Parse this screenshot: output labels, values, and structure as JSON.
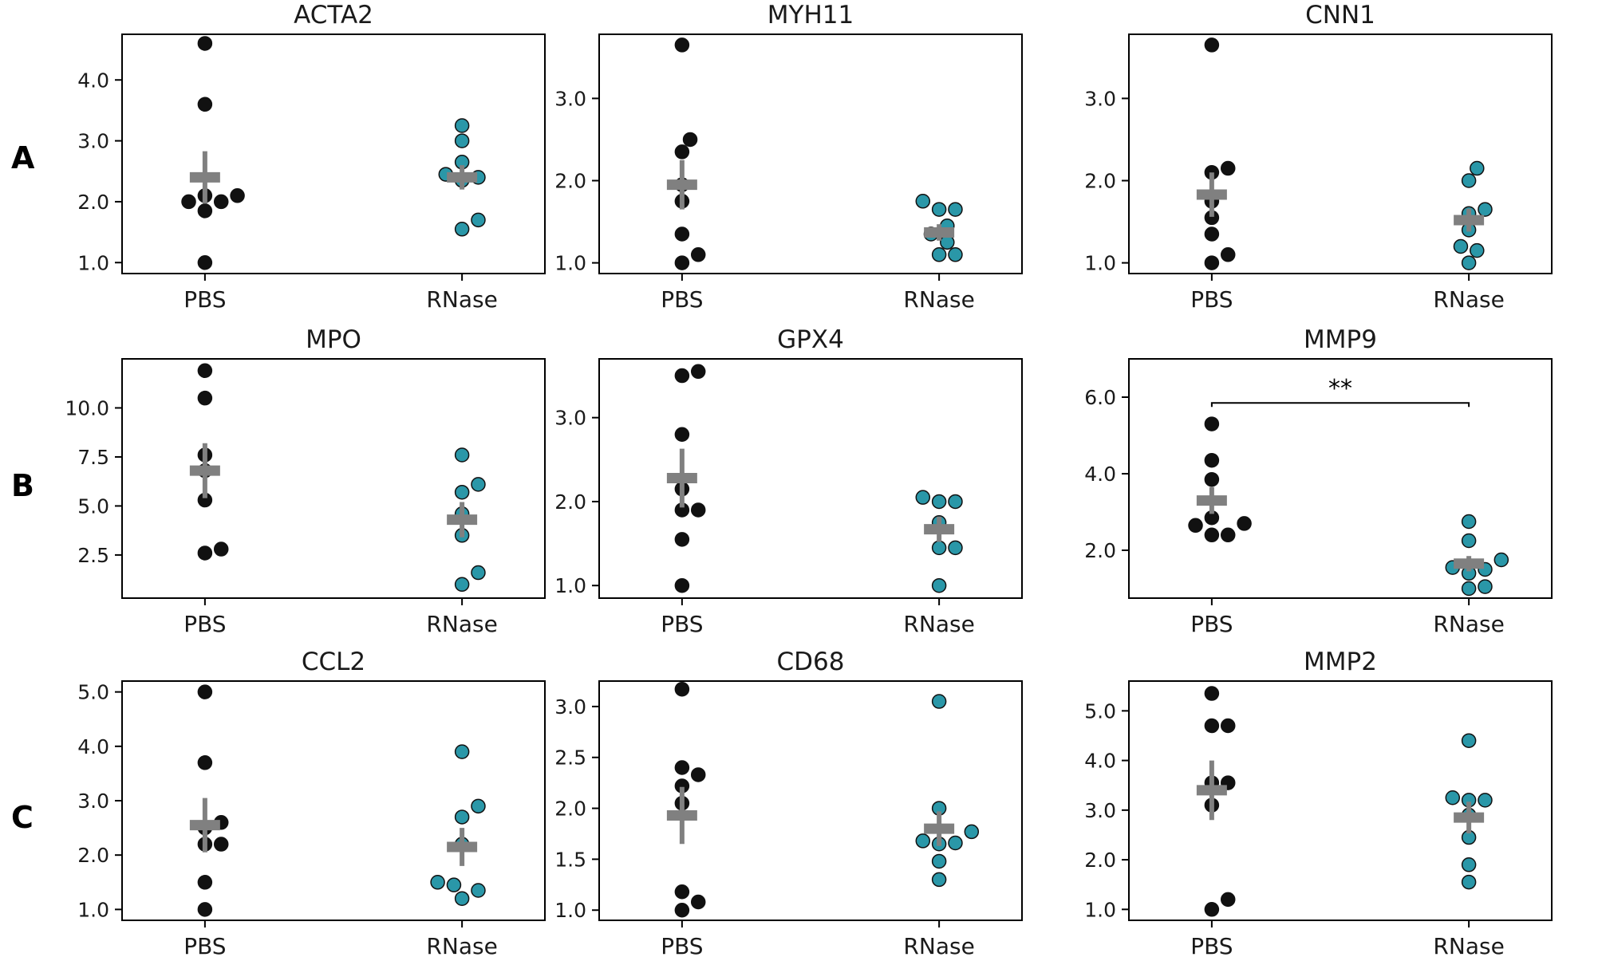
{
  "figure": {
    "row_labels": [
      "A",
      "B",
      "C"
    ],
    "colors": {
      "PBS": "#111111",
      "RNase": "#2a97a8",
      "summary": "#808080",
      "axis": "#000000",
      "text": "#1a1a1a"
    }
  },
  "chart_data": [
    {
      "type": "scatter",
      "title": "ACTA2",
      "row": "A",
      "categories": [
        "PBS",
        "RNase"
      ],
      "ylim": [
        0.82,
        4.75
      ],
      "yticks": [
        1.0,
        2.0,
        3.0,
        4.0
      ],
      "tick_format": "fixed1",
      "series": [
        {
          "name": "PBS",
          "values": [
            4.6,
            3.6,
            2.1,
            2.1,
            2.0,
            2.0,
            1.85,
            1.0
          ],
          "mean": 2.4,
          "sem": 0.43
        },
        {
          "name": "RNase",
          "values": [
            3.25,
            3.0,
            2.65,
            2.45,
            2.4,
            2.35,
            1.7,
            1.55
          ],
          "mean": 2.4,
          "sem": 0.2
        }
      ],
      "significance": null
    },
    {
      "type": "scatter",
      "title": "MYH11",
      "row": "A",
      "categories": [
        "PBS",
        "RNase"
      ],
      "ylim": [
        0.87,
        3.78
      ],
      "yticks": [
        1.0,
        2.0,
        3.0
      ],
      "tick_format": "fixed1",
      "series": [
        {
          "name": "PBS",
          "values": [
            3.65,
            2.5,
            2.35,
            1.95,
            1.75,
            1.35,
            1.1,
            1.0
          ],
          "mean": 1.95,
          "sem": 0.3
        },
        {
          "name": "RNase",
          "values": [
            1.75,
            1.65,
            1.65,
            1.45,
            1.35,
            1.25,
            1.1,
            1.1
          ],
          "mean": 1.37,
          "sem": 0.1
        }
      ],
      "significance": null
    },
    {
      "type": "scatter",
      "title": "CNN1",
      "row": "A",
      "categories": [
        "PBS",
        "RNase"
      ],
      "ylim": [
        0.87,
        3.78
      ],
      "yticks": [
        1.0,
        2.0,
        3.0
      ],
      "tick_format": "fixed1",
      "series": [
        {
          "name": "PBS",
          "values": [
            3.65,
            2.15,
            2.1,
            1.75,
            1.55,
            1.35,
            1.1,
            1.0
          ],
          "mean": 1.83,
          "sem": 0.27
        },
        {
          "name": "RNase",
          "values": [
            2.15,
            2.0,
            1.65,
            1.6,
            1.4,
            1.2,
            1.15,
            1.0
          ],
          "mean": 1.52,
          "sem": 0.14
        }
      ],
      "significance": null
    },
    {
      "type": "scatter",
      "title": "MPO",
      "row": "B",
      "categories": [
        "PBS",
        "RNase"
      ],
      "ylim": [
        0.3,
        12.5
      ],
      "yticks": [
        2.5,
        5.0,
        7.5,
        10.0
      ],
      "tick_format": "fixed1",
      "series": [
        {
          "name": "PBS",
          "values": [
            11.9,
            10.5,
            7.6,
            6.8,
            5.3,
            2.8,
            2.6
          ],
          "mean": 6.8,
          "sem": 1.4
        },
        {
          "name": "RNase",
          "values": [
            7.6,
            6.1,
            5.7,
            4.6,
            3.5,
            1.6,
            1.0
          ],
          "mean": 4.3,
          "sem": 0.9
        }
      ],
      "significance": null
    },
    {
      "type": "scatter",
      "title": "GPX4",
      "row": "B",
      "categories": [
        "PBS",
        "RNase"
      ],
      "ylim": [
        0.85,
        3.7
      ],
      "yticks": [
        1.0,
        2.0,
        3.0
      ],
      "tick_format": "fixed1",
      "series": [
        {
          "name": "PBS",
          "values": [
            3.55,
            3.5,
            2.8,
            2.15,
            1.9,
            1.9,
            1.55,
            1.0
          ],
          "mean": 2.28,
          "sem": 0.35
        },
        {
          "name": "RNase",
          "values": [
            2.05,
            2.0,
            2.0,
            1.75,
            1.45,
            1.45,
            1.0
          ],
          "mean": 1.67,
          "sem": 0.15
        }
      ],
      "significance": null
    },
    {
      "type": "scatter",
      "title": "MMP9",
      "row": "B",
      "categories": [
        "PBS",
        "RNase"
      ],
      "ylim": [
        0.75,
        7.0
      ],
      "yticks": [
        2.0,
        4.0,
        6.0
      ],
      "tick_format": "fixed1",
      "series": [
        {
          "name": "PBS",
          "values": [
            5.3,
            4.35,
            3.85,
            2.85,
            2.7,
            2.65,
            2.4,
            2.4
          ],
          "mean": 3.3,
          "sem": 0.35
        },
        {
          "name": "RNase",
          "values": [
            2.75,
            2.25,
            1.75,
            1.55,
            1.5,
            1.4,
            1.05,
            1.0
          ],
          "mean": 1.65,
          "sem": 0.2
        }
      ],
      "significance": {
        "label": "**",
        "y": 5.85
      }
    },
    {
      "type": "scatter",
      "title": "CCL2",
      "row": "C",
      "categories": [
        "PBS",
        "RNase"
      ],
      "ylim": [
        0.8,
        5.2
      ],
      "yticks": [
        1.0,
        2.0,
        3.0,
        4.0,
        5.0
      ],
      "tick_format": "fixed1",
      "series": [
        {
          "name": "PBS",
          "values": [
            5.0,
            3.7,
            2.6,
            2.5,
            2.2,
            2.2,
            1.5,
            1.0
          ],
          "mean": 2.55,
          "sem": 0.5
        },
        {
          "name": "RNase",
          "values": [
            3.9,
            2.9,
            2.7,
            2.2,
            1.5,
            1.45,
            1.35,
            1.2
          ],
          "mean": 2.15,
          "sem": 0.35
        }
      ],
      "significance": null
    },
    {
      "type": "scatter",
      "title": "CD68",
      "row": "C",
      "categories": [
        "PBS",
        "RNase"
      ],
      "ylim": [
        0.9,
        3.25
      ],
      "yticks": [
        1.0,
        1.5,
        2.0,
        2.5,
        3.0
      ],
      "tick_format": "fixed1",
      "series": [
        {
          "name": "PBS",
          "values": [
            3.17,
            2.4,
            2.33,
            2.22,
            2.05,
            1.18,
            1.08,
            1.0
          ],
          "mean": 1.93,
          "sem": 0.28
        },
        {
          "name": "RNase",
          "values": [
            3.05,
            2.0,
            1.77,
            1.68,
            1.66,
            1.65,
            1.48,
            1.3
          ],
          "mean": 1.8,
          "sem": 0.17
        }
      ],
      "significance": null
    },
    {
      "type": "scatter",
      "title": "MMP2",
      "row": "C",
      "categories": [
        "PBS",
        "RNase"
      ],
      "ylim": [
        0.78,
        5.6
      ],
      "yticks": [
        1.0,
        2.0,
        3.0,
        4.0,
        5.0
      ],
      "tick_format": "fixed1",
      "series": [
        {
          "name": "PBS",
          "values": [
            5.35,
            4.7,
            4.7,
            3.55,
            3.55,
            3.1,
            1.2,
            1.0
          ],
          "mean": 3.4,
          "sem": 0.6
        },
        {
          "name": "RNase",
          "values": [
            4.4,
            3.25,
            3.2,
            3.2,
            2.9,
            2.45,
            1.9,
            1.55
          ],
          "mean": 2.85,
          "sem": 0.32
        }
      ],
      "significance": null
    }
  ]
}
